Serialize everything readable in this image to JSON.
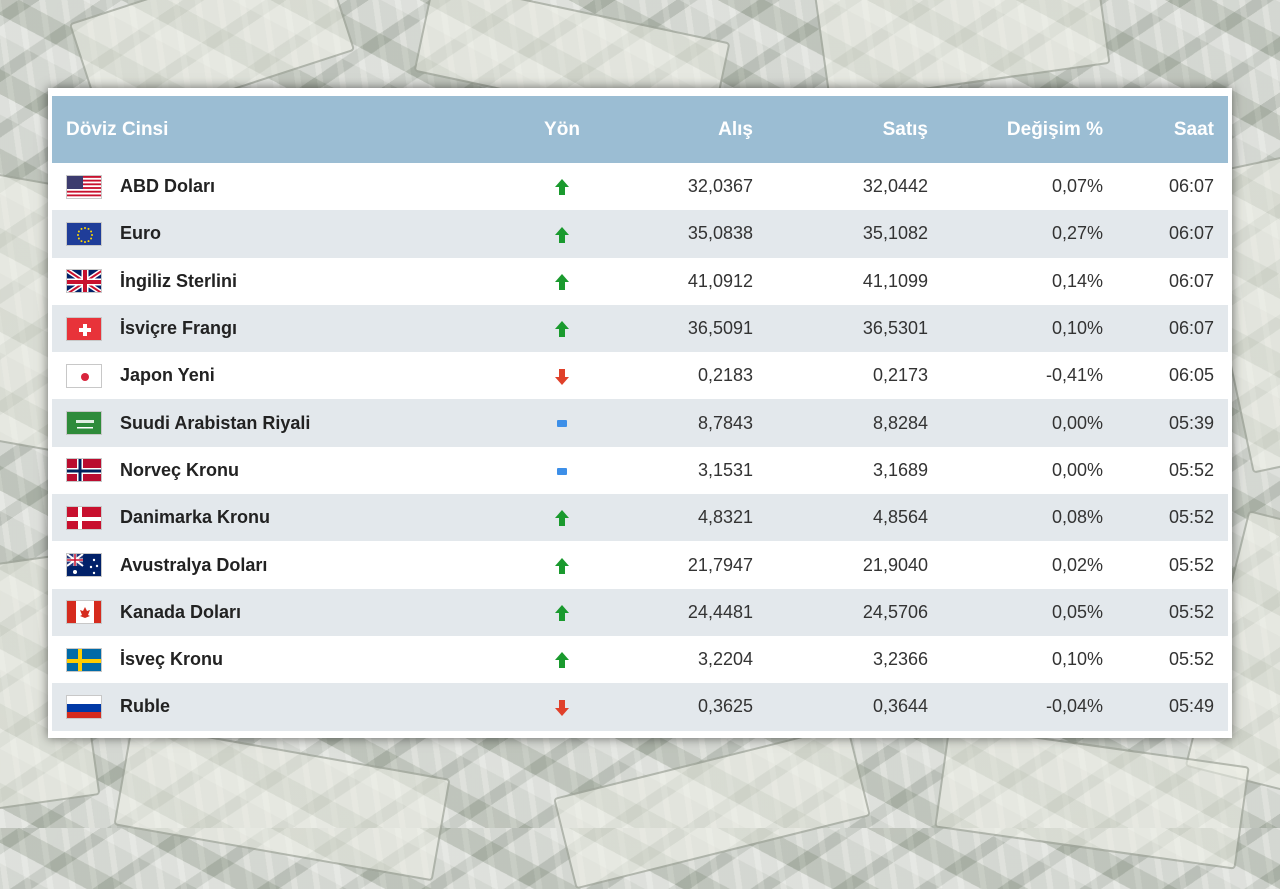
{
  "table": {
    "headers": {
      "name": "Döviz Cinsi",
      "direction": "Yön",
      "buy": "Alış",
      "sell": "Satış",
      "change": "Değişim %",
      "time": "Saat"
    },
    "rows": [
      {
        "name": "ABD Doları",
        "flag": "us-flag-icon",
        "direction": "up-arrow-icon",
        "buy": "32,0367",
        "sell": "32,0442",
        "change": "0,07%",
        "time": "06:07"
      },
      {
        "name": "Euro",
        "flag": "eu-flag-icon",
        "direction": "up-arrow-icon",
        "buy": "35,0838",
        "sell": "35,1082",
        "change": "0,27%",
        "time": "06:07"
      },
      {
        "name": "İngiliz Sterlini",
        "flag": "uk-flag-icon",
        "direction": "up-arrow-icon",
        "buy": "41,0912",
        "sell": "41,1099",
        "change": "0,14%",
        "time": "06:07"
      },
      {
        "name": "İsviçre Frangı",
        "flag": "ch-flag-icon",
        "direction": "up-arrow-icon",
        "buy": "36,5091",
        "sell": "36,5301",
        "change": "0,10%",
        "time": "06:07"
      },
      {
        "name": "Japon Yeni",
        "flag": "jp-flag-icon",
        "direction": "down-arrow-icon",
        "buy": "0,2183",
        "sell": "0,2173",
        "change": "-0,41%",
        "time": "06:05"
      },
      {
        "name": "Suudi Arabistan Riyali",
        "flag": "sa-flag-icon",
        "direction": "no-change-icon",
        "buy": "8,7843",
        "sell": "8,8284",
        "change": "0,00%",
        "time": "05:39"
      },
      {
        "name": "Norveç Kronu",
        "flag": "no-flag-icon",
        "direction": "no-change-icon",
        "buy": "3,1531",
        "sell": "3,1689",
        "change": "0,00%",
        "time": "05:52"
      },
      {
        "name": "Danimarka Kronu",
        "flag": "dk-flag-icon",
        "direction": "up-arrow-icon",
        "buy": "4,8321",
        "sell": "4,8564",
        "change": "0,08%",
        "time": "05:52"
      },
      {
        "name": "Avustralya Doları",
        "flag": "au-flag-icon",
        "direction": "up-arrow-icon",
        "buy": "21,7947",
        "sell": "21,9040",
        "change": "0,02%",
        "time": "05:52"
      },
      {
        "name": "Kanada Doları",
        "flag": "ca-flag-icon",
        "direction": "up-arrow-icon",
        "buy": "24,4481",
        "sell": "24,5706",
        "change": "0,05%",
        "time": "05:52"
      },
      {
        "name": "İsveç Kronu",
        "flag": "se-flag-icon",
        "direction": "up-arrow-icon",
        "buy": "3,2204",
        "sell": "3,2366",
        "change": "0,10%",
        "time": "05:52"
      },
      {
        "name": "Ruble",
        "flag": "ru-flag-icon",
        "direction": "down-arrow-icon",
        "buy": "0,3625",
        "sell": "0,3644",
        "change": "-0,04%",
        "time": "05:49"
      }
    ]
  },
  "colors": {
    "header_bg": "#9bbdd3",
    "row_alt_bg": "#e3e8ec",
    "up": "#1a9a2e",
    "down": "#e0402a",
    "no_change": "#3d8fe8"
  }
}
